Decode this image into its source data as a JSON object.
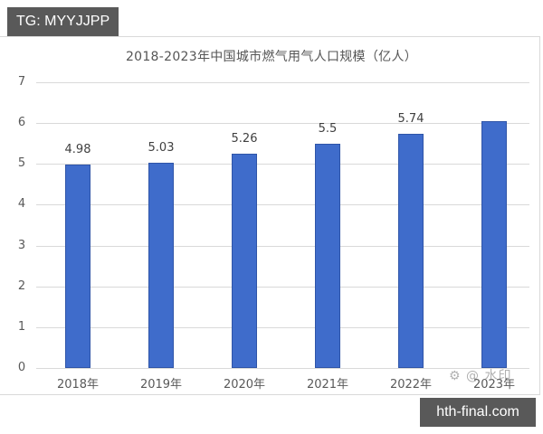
{
  "overlay": {
    "top_badge": "TG: MYYJJPP",
    "bottom_badge": "hth-final.com",
    "watermark": "⚙ @ 水印"
  },
  "chart_data": {
    "type": "bar",
    "title": "2018-2023年中国城市燃气用气人口规模（亿人）",
    "categories": [
      "2018年",
      "2019年",
      "2020年",
      "2021年",
      "2022年",
      "2023年"
    ],
    "values": [
      4.98,
      5.03,
      5.26,
      5.5,
      5.74,
      6.04
    ],
    "data_labels": [
      "4.98",
      "5.03",
      "5.26",
      "5.5",
      "5.74",
      ""
    ],
    "xlabel": "",
    "ylabel": "",
    "ylim": [
      0,
      7
    ],
    "yticks": [
      "0",
      "1",
      "2",
      "3",
      "4",
      "5",
      "6",
      "7"
    ],
    "grid": true,
    "legend": null,
    "bar_color": "#3f6ccb"
  }
}
